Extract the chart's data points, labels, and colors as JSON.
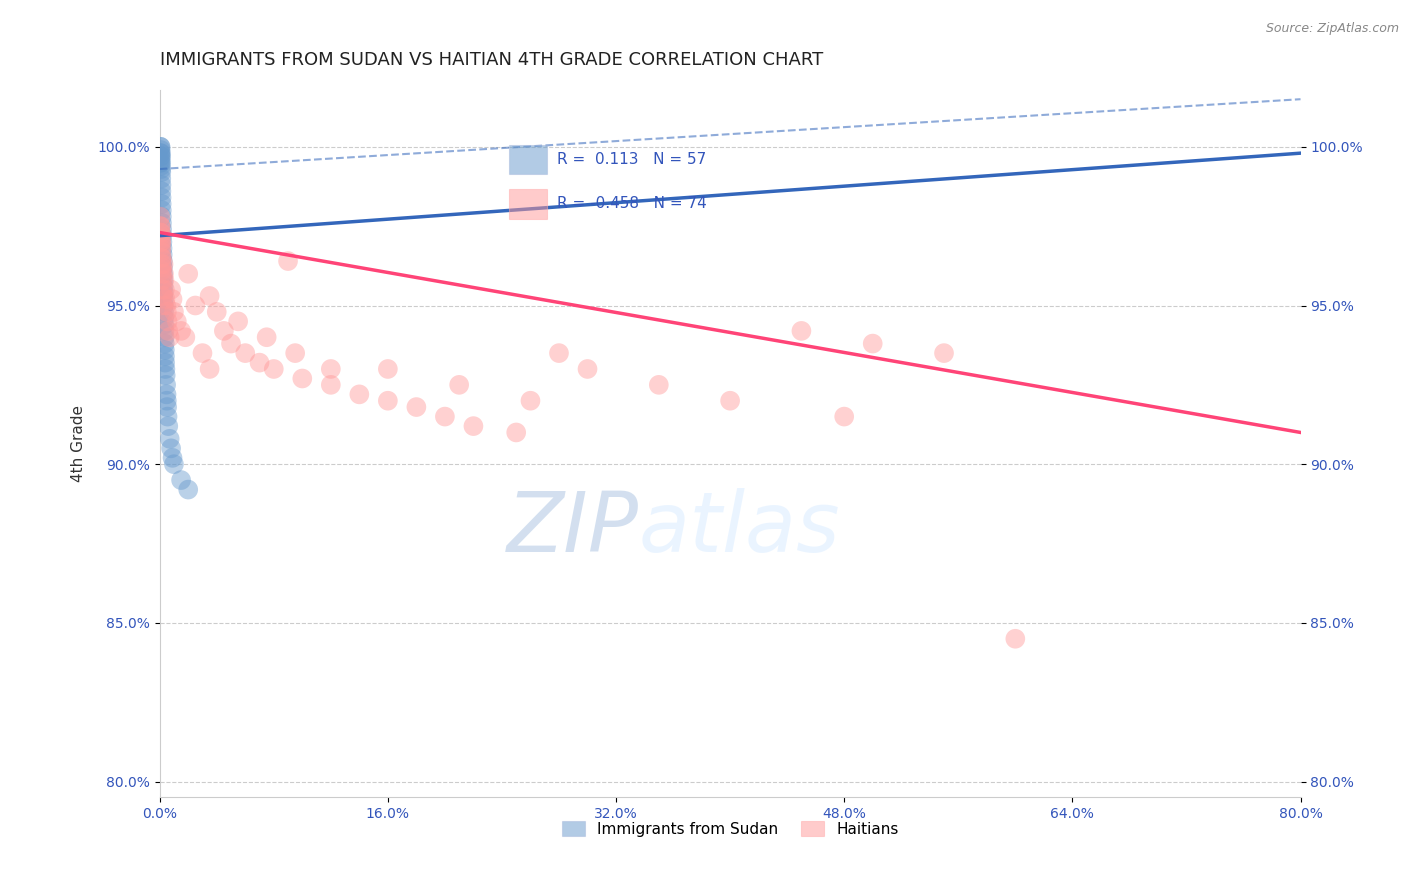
{
  "title": "IMMIGRANTS FROM SUDAN VS HAITIAN 4TH GRADE CORRELATION CHART",
  "source": "Source: ZipAtlas.com",
  "ylabel": "4th Grade",
  "R_blue": 0.113,
  "N_blue": 57,
  "R_pink": -0.458,
  "N_pink": 74,
  "blue_color": "#6699CC",
  "pink_color": "#FF9999",
  "blue_line_color": "#3366BB",
  "pink_line_color": "#FF4477",
  "watermark_zip": "ZIP",
  "watermark_atlas": "atlas",
  "legend_label_blue": "Immigrants from Sudan",
  "legend_label_pink": "Haitians",
  "xlim": [
    0,
    80
  ],
  "ylim": [
    79.5,
    101.8
  ],
  "x_ticks": [
    0,
    16,
    32,
    48,
    64,
    80
  ],
  "y_ticks": [
    80.0,
    85.0,
    90.0,
    95.0,
    100.0
  ],
  "blue_trend_x0": 0,
  "blue_trend_y0": 97.2,
  "blue_trend_x1": 80,
  "blue_trend_y1": 99.8,
  "blue_dash_x0": 0,
  "blue_dash_y0": 99.3,
  "blue_dash_x1": 80,
  "blue_dash_y1": 101.5,
  "pink_trend_x0": 0,
  "pink_trend_y0": 97.3,
  "pink_trend_x1": 80,
  "pink_trend_y1": 91.0,
  "blue_scatter_x": [
    0.05,
    0.05,
    0.05,
    0.06,
    0.06,
    0.07,
    0.07,
    0.08,
    0.08,
    0.09,
    0.1,
    0.1,
    0.11,
    0.11,
    0.12,
    0.12,
    0.13,
    0.14,
    0.15,
    0.15,
    0.16,
    0.17,
    0.18,
    0.19,
    0.2,
    0.21,
    0.22,
    0.23,
    0.24,
    0.25,
    0.26,
    0.27,
    0.28,
    0.29,
    0.3,
    0.31,
    0.32,
    0.33,
    0.34,
    0.35,
    0.36,
    0.37,
    0.38,
    0.4,
    0.42,
    0.45,
    0.48,
    0.5,
    0.52,
    0.55,
    0.6,
    0.7,
    0.8,
    0.9,
    1.0,
    1.5,
    2.0
  ],
  "blue_scatter_y": [
    100.0,
    99.8,
    99.5,
    100.0,
    99.7,
    99.9,
    99.6,
    99.8,
    99.4,
    99.7,
    99.5,
    99.3,
    99.2,
    99.0,
    98.8,
    98.6,
    98.4,
    98.2,
    98.0,
    97.8,
    97.6,
    97.4,
    97.2,
    97.0,
    96.8,
    96.6,
    96.4,
    96.2,
    96.0,
    95.8,
    95.6,
    95.4,
    95.2,
    95.0,
    94.8,
    94.6,
    94.4,
    94.2,
    94.0,
    93.8,
    93.6,
    93.4,
    93.2,
    93.0,
    92.8,
    92.5,
    92.2,
    92.0,
    91.8,
    91.5,
    91.2,
    90.8,
    90.5,
    90.2,
    90.0,
    89.5,
    89.2
  ],
  "pink_scatter_x": [
    0.04,
    0.05,
    0.05,
    0.06,
    0.07,
    0.07,
    0.08,
    0.08,
    0.09,
    0.1,
    0.1,
    0.11,
    0.12,
    0.13,
    0.14,
    0.15,
    0.16,
    0.17,
    0.18,
    0.2,
    0.22,
    0.25,
    0.27,
    0.3,
    0.33,
    0.36,
    0.4,
    0.45,
    0.5,
    0.55,
    0.6,
    0.7,
    0.8,
    0.9,
    1.0,
    1.2,
    1.5,
    1.8,
    2.0,
    2.5,
    3.0,
    3.5,
    4.0,
    4.5,
    5.0,
    6.0,
    7.0,
    8.0,
    9.0,
    10.0,
    12.0,
    14.0,
    16.0,
    18.0,
    20.0,
    22.0,
    25.0,
    28.0,
    30.0,
    35.0,
    40.0,
    45.0,
    50.0,
    55.0,
    3.5,
    5.5,
    7.5,
    9.5,
    12.0,
    16.0,
    21.0,
    26.0,
    48.0,
    60.0
  ],
  "pink_scatter_y": [
    97.8,
    97.5,
    97.3,
    97.5,
    97.2,
    97.0,
    97.3,
    96.8,
    97.1,
    96.9,
    97.0,
    96.7,
    96.5,
    96.3,
    96.1,
    96.5,
    96.2,
    96.0,
    95.8,
    95.5,
    95.3,
    95.0,
    96.3,
    96.0,
    95.8,
    95.5,
    95.2,
    95.0,
    94.8,
    94.5,
    94.2,
    94.0,
    95.5,
    95.2,
    94.8,
    94.5,
    94.2,
    94.0,
    96.0,
    95.0,
    93.5,
    95.3,
    94.8,
    94.2,
    93.8,
    93.5,
    93.2,
    93.0,
    96.4,
    92.7,
    92.5,
    92.2,
    92.0,
    91.8,
    91.5,
    91.2,
    91.0,
    93.5,
    93.0,
    92.5,
    92.0,
    94.2,
    93.8,
    93.5,
    93.0,
    94.5,
    94.0,
    93.5,
    93.0,
    93.0,
    92.5,
    92.0,
    91.5,
    84.5
  ]
}
